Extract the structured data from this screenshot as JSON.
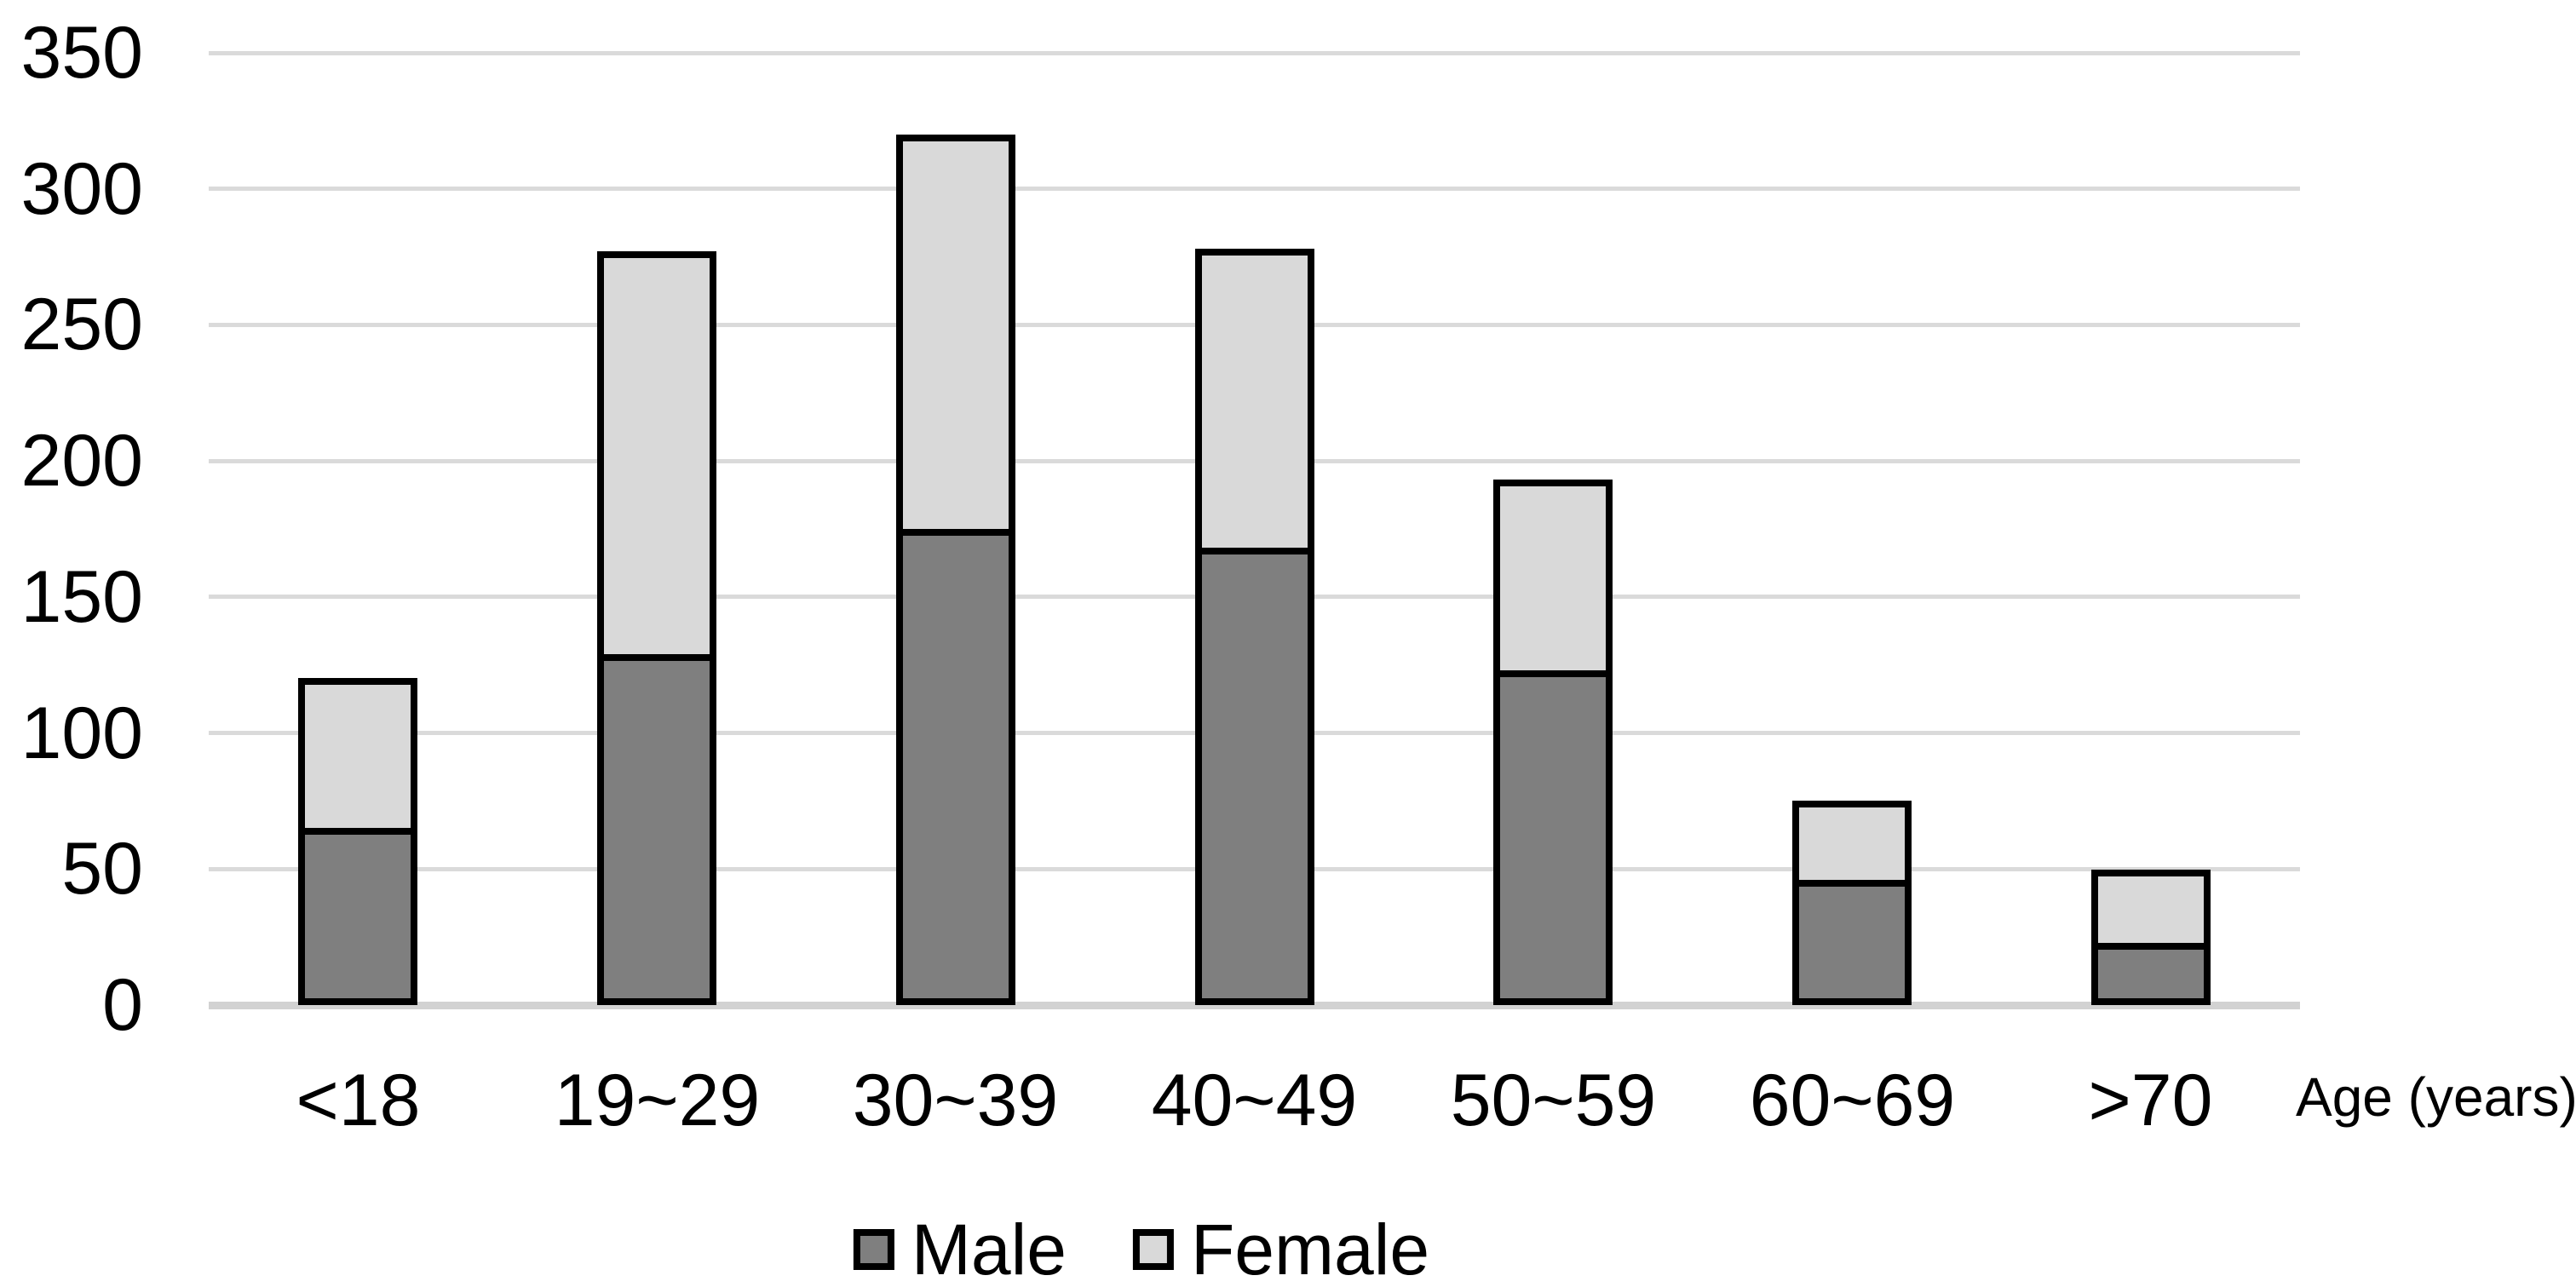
{
  "chart_data": {
    "type": "bar",
    "stacked": true,
    "orientation": "vertical",
    "title": "",
    "xlabel": "Age (years)",
    "ylabel": "",
    "categories": [
      "<18",
      "19~29",
      "30~39",
      "40~49",
      "50~59",
      "60~69",
      ">70"
    ],
    "series": [
      {
        "name": "Male",
        "color": "#7f7f7f",
        "values": [
          65,
          129,
          175,
          168,
          123,
          46,
          23
        ]
      },
      {
        "name": "Female",
        "color": "#d9d9d9",
        "values": [
          55,
          148,
          145,
          110,
          70,
          29,
          27
        ]
      }
    ],
    "stack_totals": [
      120,
      277,
      320,
      278,
      193,
      75,
      50
    ],
    "ylim": [
      0,
      350
    ],
    "yticks": [
      0,
      50,
      100,
      150,
      200,
      250,
      300,
      350
    ],
    "grid": true,
    "legend_position": "bottom",
    "bar_border_color": "#000000"
  },
  "legend": {
    "items": [
      {
        "label": "Male",
        "color": "#7f7f7f"
      },
      {
        "label": "Female",
        "color": "#d9d9d9"
      }
    ]
  },
  "axis": {
    "x_title": "Age (years)"
  },
  "style": {
    "background": "#ffffff",
    "gridline_color": "#dadada",
    "axis_line_color": "#d2d2d2",
    "text_color": "#000000"
  }
}
